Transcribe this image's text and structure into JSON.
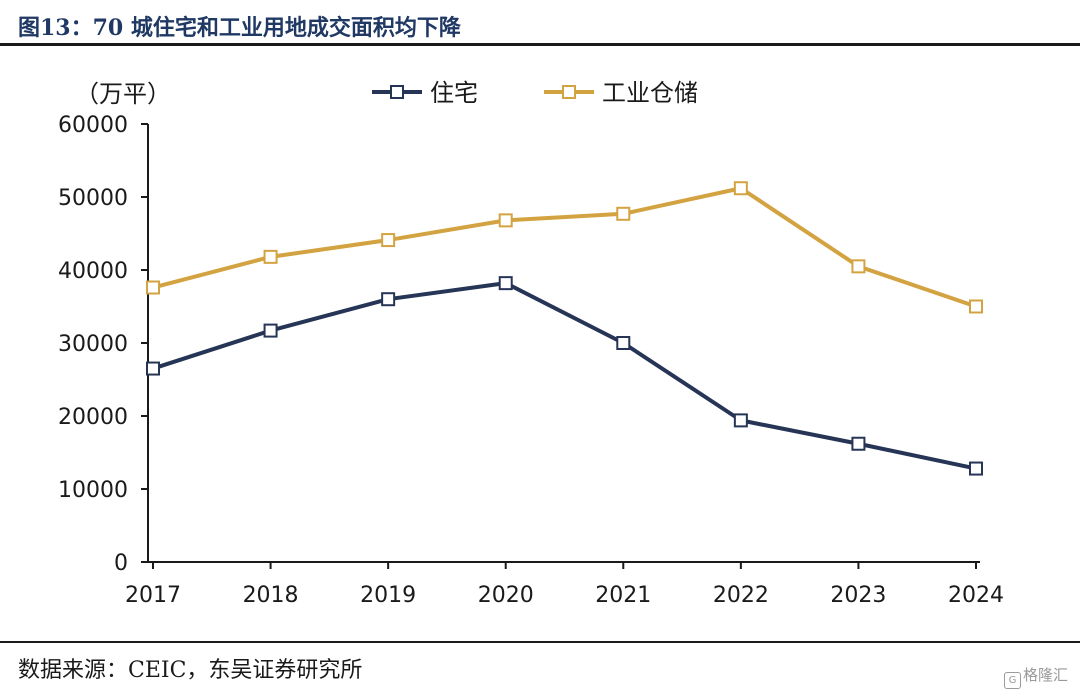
{
  "header": {
    "title": "图13：70 城住宅和工业用地成交面积均下降"
  },
  "footer": {
    "source": "数据来源：CEIC，东吴证券研究所",
    "watermark": "格隆汇"
  },
  "chart_data": {
    "type": "line",
    "title": "图13：70 城住宅和工业用地成交面积均下降",
    "ylabel": "（万平）",
    "xlabel": "",
    "x": [
      "2017",
      "2018",
      "2019",
      "2020",
      "2021",
      "2022",
      "2023",
      "2024"
    ],
    "ylim": [
      0,
      60000
    ],
    "yticks": [
      0,
      10000,
      20000,
      30000,
      40000,
      50000,
      60000
    ],
    "grid": false,
    "legend": "top-center",
    "series": [
      {
        "name": "住宅",
        "color": "#263556",
        "marker": "hollow-square",
        "values": [
          26500,
          31700,
          36000,
          38200,
          30000,
          19400,
          16200,
          12800
        ]
      },
      {
        "name": "工业仓储",
        "color": "#d4a341",
        "marker": "hollow-square",
        "values": [
          37600,
          41800,
          44100,
          46800,
          47700,
          51200,
          40500,
          35000
        ]
      }
    ]
  }
}
